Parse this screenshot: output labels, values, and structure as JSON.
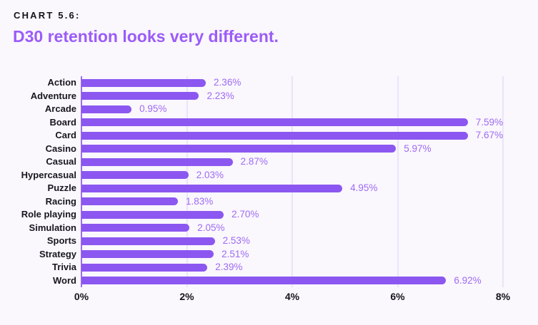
{
  "header": {
    "kicker": "CHART 5.6:",
    "title": "D30 retention looks very different."
  },
  "colors": {
    "background": "#faf7fd",
    "bar": "#8c57f0",
    "value_label": "#9e6bf2",
    "title": "#9b5cf7",
    "kicker_text": "#141418",
    "category_text": "#17171f",
    "tick_text": "#16161e",
    "axis_line": "#9c70ee",
    "gridline": "#ddd0f6"
  },
  "chart_data": {
    "type": "bar",
    "orientation": "horizontal",
    "title": "D30 retention looks very different.",
    "subtitle": "CHART 5.6:",
    "categories": [
      "Action",
      "Adventure",
      "Arcade",
      "Board",
      "Card",
      "Casino",
      "Casual",
      "Hypercasual",
      "Puzzle",
      "Racing",
      "Role playing",
      "Simulation",
      "Sports",
      "Strategy",
      "Trivia",
      "Word"
    ],
    "values": [
      2.36,
      2.23,
      0.95,
      7.59,
      7.67,
      5.97,
      2.87,
      2.03,
      4.95,
      1.83,
      2.7,
      2.05,
      2.53,
      2.51,
      2.39,
      6.92
    ],
    "value_labels": [
      "2.36%",
      "2.23%",
      "0.95%",
      "7.59%",
      "7.67%",
      "5.97%",
      "2.87%",
      "2.03%",
      "4.95%",
      "1.83%",
      "2.70%",
      "2.05%",
      "2.53%",
      "2.51%",
      "2.39%",
      "6.92%"
    ],
    "x_ticks": [
      "0%",
      "2%",
      "4%",
      "6%",
      "8%"
    ],
    "x_tick_values": [
      0,
      2,
      4,
      6,
      8
    ],
    "xlim": [
      0,
      8
    ],
    "xlabel": "",
    "ylabel": "",
    "grid": "vertical",
    "legend": "none"
  }
}
